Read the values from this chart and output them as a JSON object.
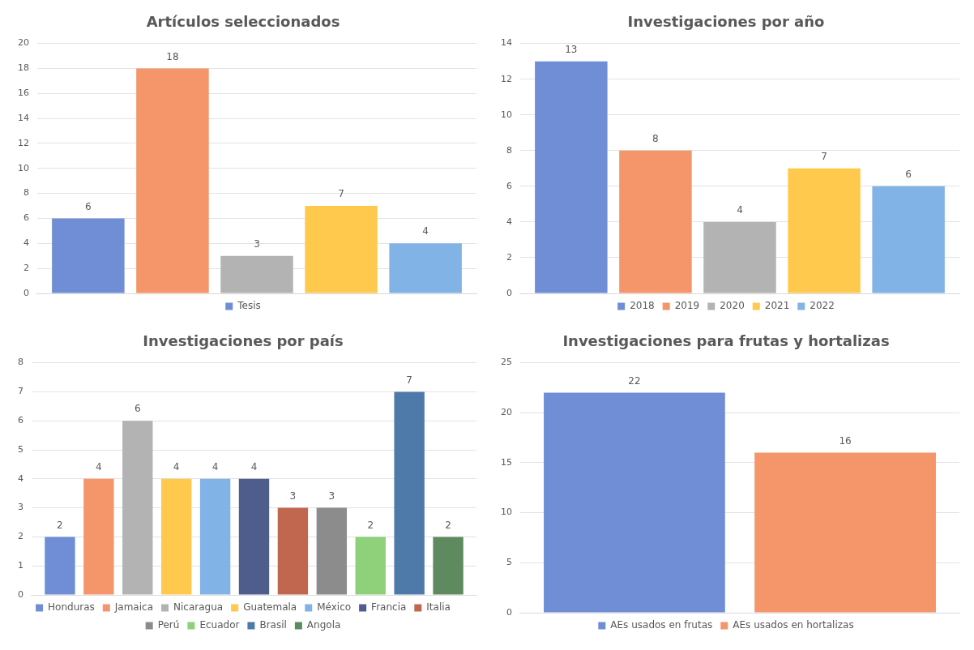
{
  "chart_data": [
    {
      "type": "bar",
      "title": "Artículos seleccionados",
      "categories": [
        null
      ],
      "series": [
        {
          "name": "Tesis",
          "color": "#6f8ed6",
          "values": [
            6
          ]
        },
        {
          "color": "#f4956a",
          "values": [
            18
          ]
        },
        {
          "color": "#b3b3b3",
          "values": [
            3
          ]
        },
        {
          "color": "#ffc94d",
          "values": [
            7
          ]
        },
        {
          "color": "#82b3e6",
          "values": [
            4
          ]
        }
      ],
      "ylim": [
        0,
        20
      ],
      "yticks": [
        0,
        2,
        4,
        6,
        8,
        10,
        12,
        14,
        16,
        18,
        20
      ],
      "grid": "y",
      "legend": "bottom",
      "data_labels": true,
      "tick_labels": "y"
    },
    {
      "type": "bar",
      "title": "Investigaciones por año",
      "categories": [
        null
      ],
      "series": [
        {
          "name": "2018",
          "color": "#6f8ed6",
          "values": [
            13
          ]
        },
        {
          "name": "2019",
          "color": "#f4956a",
          "values": [
            8
          ]
        },
        {
          "name": "2020",
          "color": "#b3b3b3",
          "values": [
            4
          ]
        },
        {
          "name": "2021",
          "color": "#ffc94d",
          "values": [
            7
          ]
        },
        {
          "name": "2022",
          "color": "#82b3e6",
          "values": [
            6
          ]
        }
      ],
      "ylim": [
        0,
        14
      ],
      "yticks": [
        0,
        2,
        4,
        6,
        8,
        10,
        12,
        14
      ],
      "grid": "y",
      "legend": "bottom",
      "data_labels": true,
      "tick_labels": "y"
    },
    {
      "type": "bar",
      "title": "Investigaciones por país",
      "categories": [
        null
      ],
      "series": [
        {
          "name": "Honduras",
          "color": "#6f8ed6",
          "values": [
            2
          ]
        },
        {
          "name": "Jamaica",
          "color": "#f4956a",
          "values": [
            4
          ]
        },
        {
          "name": "Nicaragua",
          "color": "#b3b3b3",
          "values": [
            6
          ]
        },
        {
          "name": "Guatemala",
          "color": "#ffc94d",
          "values": [
            4
          ]
        },
        {
          "name": "México",
          "color": "#82b3e6",
          "values": [
            4
          ]
        },
        {
          "name": "Francia",
          "color": "#4e5d8c",
          "values": [
            4
          ]
        },
        {
          "name": "Italia",
          "color": "#c2674f",
          "values": [
            3
          ]
        },
        {
          "name": "Perú",
          "color": "#8c8c8c",
          "values": [
            3
          ]
        },
        {
          "name": "Ecuador",
          "color": "#8fd07a",
          "values": [
            2
          ]
        },
        {
          "name": "Brasil",
          "color": "#4d7aa8",
          "values": [
            7
          ]
        },
        {
          "name": "Angola",
          "color": "#5f8a5f",
          "values": [
            2
          ]
        }
      ],
      "ylim": [
        0,
        8
      ],
      "yticks": [
        0,
        1,
        2,
        3,
        4,
        5,
        6,
        7,
        8
      ],
      "grid": "y",
      "legend": "bottom",
      "data_labels": true,
      "tick_labels": "y"
    },
    {
      "type": "bar",
      "title": "Investigaciones para frutas y hortalizas",
      "categories": [
        null
      ],
      "series": [
        {
          "name": "AEs usados en frutas",
          "color": "#6f8ed6",
          "values": [
            22
          ]
        },
        {
          "name": "AEs usados en hortalizas",
          "color": "#f4956a",
          "values": [
            16
          ]
        }
      ],
      "ylim": [
        0,
        25
      ],
      "yticks": [
        0,
        5,
        10,
        15,
        20,
        25
      ],
      "grid": "y",
      "legend": "bottom",
      "data_labels": true,
      "tick_labels": "y"
    }
  ]
}
